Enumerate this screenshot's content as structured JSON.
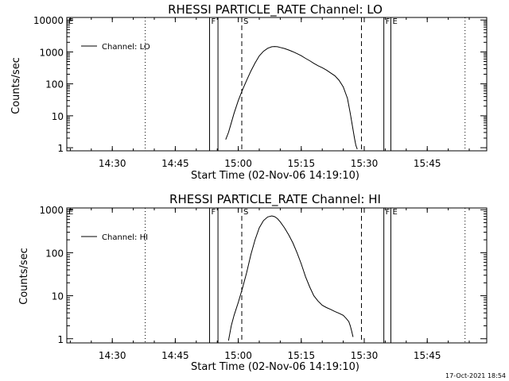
{
  "timestamp": "17-Oct-2021 18:54",
  "colors": {
    "background": "#ffffff",
    "foreground": "#000000"
  },
  "chart_data": [
    {
      "type": "line",
      "title": "RHESSI PARTICLE_RATE Channel: LO",
      "xlabel": "Start Time (02-Nov-06 14:19:10)",
      "ylabel": "Counts/sec",
      "yscale": "log",
      "ylim": [
        0.8,
        12000
      ],
      "xlim": [
        "14:19:10",
        "15:59:10"
      ],
      "x_ticks": [
        "14:30",
        "14:45",
        "15:00",
        "15:15",
        "15:30",
        "15:45"
      ],
      "y_ticks": [
        "1",
        "10",
        "100",
        "1000",
        "10000"
      ],
      "legend": {
        "position": "top-left",
        "entries": [
          "Channel: LO"
        ]
      },
      "markers": [
        {
          "label": "F",
          "style": "solid",
          "time": "14:53:10"
        },
        {
          "label": "",
          "style": "solid",
          "time": "14:55:10"
        },
        {
          "label": "S",
          "style": "dashed",
          "time": "15:00:50"
        },
        {
          "label": "",
          "style": "dashed",
          "time": "15:29:20"
        },
        {
          "label": "F",
          "style": "solid",
          "time": "15:34:40"
        },
        {
          "label": "E",
          "style": "solid",
          "time": "15:36:20"
        },
        {
          "label": "",
          "style": "dotted",
          "time": "14:37:50"
        },
        {
          "label": "",
          "style": "dotted",
          "time": "15:54:00"
        },
        {
          "label": "E",
          "style": "dotted",
          "time": "14:19:10"
        }
      ],
      "series": [
        {
          "name": "Channel: LO",
          "x": [
            "14:57:00",
            "14:57:40",
            "14:58:20",
            "14:59:00",
            "15:00:00",
            "15:01:00",
            "15:02:00",
            "15:03:00",
            "15:04:00",
            "15:05:00",
            "15:06:00",
            "15:07:00",
            "15:08:00",
            "15:08:40",
            "15:09:20",
            "15:10:00",
            "15:11:00",
            "15:12:00",
            "15:13:00",
            "15:14:00",
            "15:15:00",
            "15:16:00",
            "15:17:00",
            "15:18:00",
            "15:19:00",
            "15:20:00",
            "15:21:00",
            "15:22:00",
            "15:23:00",
            "15:24:00",
            "15:25:00",
            "15:26:00",
            "15:26:40",
            "15:27:10",
            "15:27:40",
            "15:28:00",
            "15:28:20"
          ],
          "y": [
            1.8,
            3,
            6,
            12,
            30,
            65,
            130,
            250,
            450,
            750,
            1050,
            1300,
            1450,
            1480,
            1450,
            1380,
            1280,
            1150,
            1020,
            880,
            760,
            630,
            530,
            440,
            370,
            320,
            270,
            220,
            180,
            130,
            80,
            35,
            12,
            5,
            2,
            1.2,
            0.9
          ]
        }
      ]
    },
    {
      "type": "line",
      "title": "RHESSI PARTICLE_RATE Channel: HI",
      "xlabel": "Start Time (02-Nov-06 14:19:10)",
      "ylabel": "Counts/sec",
      "yscale": "log",
      "ylim": [
        0.8,
        1100
      ],
      "xlim": [
        "14:19:10",
        "15:59:10"
      ],
      "x_ticks": [
        "14:30",
        "14:45",
        "15:00",
        "15:15",
        "15:30",
        "15:45"
      ],
      "y_ticks": [
        "1",
        "10",
        "100",
        "1000"
      ],
      "legend": {
        "position": "top-left",
        "entries": [
          "Channel: HI"
        ]
      },
      "markers": [
        {
          "label": "F",
          "style": "solid",
          "time": "14:53:10"
        },
        {
          "label": "",
          "style": "solid",
          "time": "14:55:10"
        },
        {
          "label": "S",
          "style": "dashed",
          "time": "15:00:50"
        },
        {
          "label": "",
          "style": "dashed",
          "time": "15:29:20"
        },
        {
          "label": "F",
          "style": "solid",
          "time": "15:34:40"
        },
        {
          "label": "E",
          "style": "solid",
          "time": "15:36:20"
        },
        {
          "label": "",
          "style": "dotted",
          "time": "14:37:50"
        },
        {
          "label": "",
          "style": "dotted",
          "time": "15:54:00"
        },
        {
          "label": "E",
          "style": "dotted",
          "time": "14:19:10"
        }
      ],
      "series": [
        {
          "name": "Channel: HI",
          "x": [
            "14:57:40",
            "14:58:20",
            "14:59:00",
            "15:00:00",
            "15:01:00",
            "15:02:00",
            "15:03:00",
            "15:04:00",
            "15:05:00",
            "15:06:00",
            "15:07:00",
            "15:08:00",
            "15:08:40",
            "15:09:20",
            "15:10:00",
            "15:11:00",
            "15:12:00",
            "15:13:00",
            "15:14:00",
            "15:15:00",
            "15:16:00",
            "15:17:00",
            "15:18:00",
            "15:19:00",
            "15:20:00",
            "15:21:00",
            "15:22:00",
            "15:23:00",
            "15:24:00",
            "15:25:00",
            "15:25:40",
            "15:26:20",
            "15:26:40",
            "15:27:00",
            "15:27:20"
          ],
          "y": [
            0.9,
            2,
            3.5,
            7,
            15,
            35,
            90,
            200,
            380,
            560,
            680,
            720,
            690,
            620,
            520,
            380,
            260,
            170,
            100,
            55,
            28,
            16,
            10,
            7.5,
            6,
            5.3,
            4.8,
            4.3,
            3.9,
            3.5,
            3.0,
            2.5,
            2.0,
            1.5,
            1.1
          ]
        }
      ]
    }
  ]
}
